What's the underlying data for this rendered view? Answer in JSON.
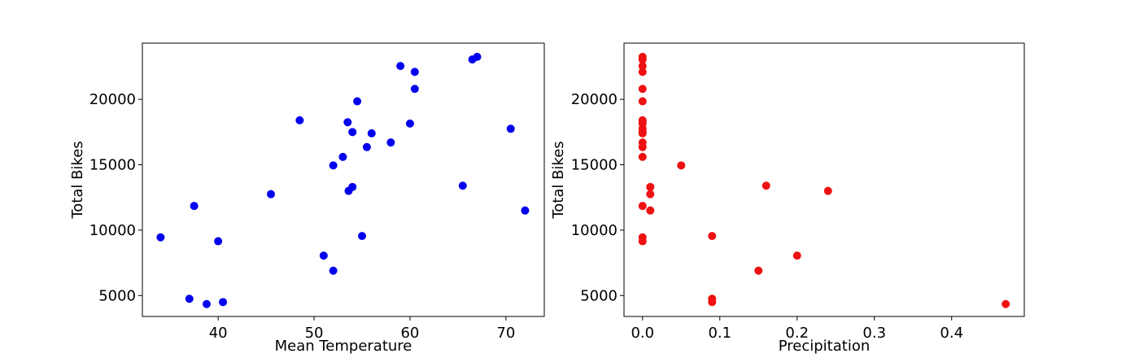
{
  "chart_data": [
    {
      "type": "scatter",
      "title": "",
      "xlabel": "Mean Temperature",
      "ylabel": "Total Bikes",
      "xlim": [
        32.1,
        74.0
      ],
      "ylim": [
        3400,
        24300
      ],
      "xticks": [
        40,
        50,
        60,
        70
      ],
      "yticks": [
        5000,
        10000,
        15000,
        20000
      ],
      "xtick_labels": [
        "40",
        "50",
        "60",
        "70"
      ],
      "ytick_labels": [
        "5000",
        "10000",
        "15000",
        "20000"
      ],
      "grid": false,
      "color": "#0000ee",
      "points": [
        {
          "x": 34.0,
          "y": 9450
        },
        {
          "x": 37.0,
          "y": 4750
        },
        {
          "x": 37.5,
          "y": 11850
        },
        {
          "x": 38.8,
          "y": 4350
        },
        {
          "x": 40.0,
          "y": 9150
        },
        {
          "x": 40.5,
          "y": 4500
        },
        {
          "x": 45.5,
          "y": 12750
        },
        {
          "x": 48.5,
          "y": 18400
        },
        {
          "x": 51.0,
          "y": 8050
        },
        {
          "x": 52.0,
          "y": 6900
        },
        {
          "x": 52.0,
          "y": 14950
        },
        {
          "x": 53.0,
          "y": 15600
        },
        {
          "x": 53.5,
          "y": 18250
        },
        {
          "x": 53.6,
          "y": 13000
        },
        {
          "x": 54.0,
          "y": 13300
        },
        {
          "x": 54.0,
          "y": 17500
        },
        {
          "x": 54.5,
          "y": 19850
        },
        {
          "x": 55.0,
          "y": 9550
        },
        {
          "x": 55.5,
          "y": 16350
        },
        {
          "x": 56.0,
          "y": 17400
        },
        {
          "x": 58.0,
          "y": 16700
        },
        {
          "x": 59.0,
          "y": 22550
        },
        {
          "x": 60.0,
          "y": 18150
        },
        {
          "x": 60.5,
          "y": 20800
        },
        {
          "x": 60.5,
          "y": 22100
        },
        {
          "x": 65.5,
          "y": 13400
        },
        {
          "x": 66.5,
          "y": 23050
        },
        {
          "x": 67.0,
          "y": 23250
        },
        {
          "x": 70.5,
          "y": 17750
        },
        {
          "x": 72.0,
          "y": 11500
        }
      ]
    },
    {
      "type": "scatter",
      "title": "",
      "xlabel": "Precipitation",
      "ylabel": "Total Bikes",
      "xlim": [
        -0.024,
        0.494
      ],
      "ylim": [
        3400,
        24300
      ],
      "xticks": [
        0.0,
        0.1,
        0.2,
        0.3,
        0.4
      ],
      "yticks": [
        5000,
        10000,
        15000,
        20000
      ],
      "xtick_labels": [
        "0.0",
        "0.1",
        "0.2",
        "0.3",
        "0.4"
      ],
      "ytick_labels": [
        "5000",
        "10000",
        "15000",
        "20000"
      ],
      "grid": false,
      "color": "#ee1111",
      "points": [
        {
          "x": 0.0,
          "y": 23250
        },
        {
          "x": 0.0,
          "y": 23050
        },
        {
          "x": 0.0,
          "y": 22550
        },
        {
          "x": 0.0,
          "y": 22100
        },
        {
          "x": 0.0,
          "y": 20800
        },
        {
          "x": 0.0,
          "y": 19850
        },
        {
          "x": 0.0,
          "y": 18400
        },
        {
          "x": 0.0,
          "y": 18250
        },
        {
          "x": 0.0,
          "y": 18150
        },
        {
          "x": 0.0,
          "y": 17750
        },
        {
          "x": 0.0,
          "y": 17500
        },
        {
          "x": 0.0,
          "y": 17400
        },
        {
          "x": 0.0,
          "y": 16700
        },
        {
          "x": 0.0,
          "y": 16350
        },
        {
          "x": 0.0,
          "y": 15600
        },
        {
          "x": 0.0,
          "y": 11850
        },
        {
          "x": 0.0,
          "y": 9450
        },
        {
          "x": 0.0,
          "y": 9150
        },
        {
          "x": 0.01,
          "y": 13300
        },
        {
          "x": 0.01,
          "y": 12750
        },
        {
          "x": 0.01,
          "y": 11500
        },
        {
          "x": 0.05,
          "y": 14950
        },
        {
          "x": 0.09,
          "y": 9550
        },
        {
          "x": 0.09,
          "y": 4750
        },
        {
          "x": 0.09,
          "y": 4500
        },
        {
          "x": 0.15,
          "y": 6900
        },
        {
          "x": 0.16,
          "y": 13400
        },
        {
          "x": 0.2,
          "y": 8050
        },
        {
          "x": 0.24,
          "y": 13000
        },
        {
          "x": 0.47,
          "y": 4350
        }
      ]
    }
  ]
}
